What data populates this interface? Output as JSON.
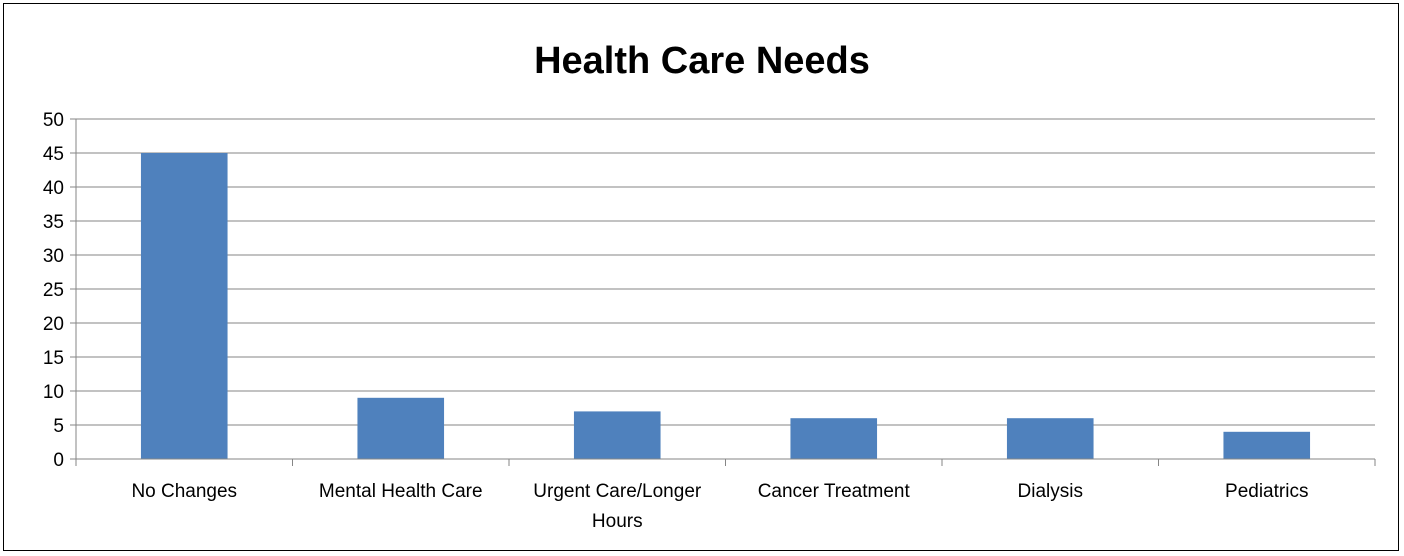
{
  "chart_data": {
    "type": "bar",
    "title": "Health Care Needs",
    "xlabel": "",
    "ylabel": "",
    "categories": [
      "No Changes",
      "Mental Health Care",
      "Urgent Care/Longer Hours",
      "Cancer Treatment",
      "Dialysis",
      "Pediatrics"
    ],
    "category_label_lines": [
      [
        "No Changes"
      ],
      [
        "Mental Health Care"
      ],
      [
        "Urgent Care/Longer",
        "Hours"
      ],
      [
        "Cancer Treatment"
      ],
      [
        "Dialysis"
      ],
      [
        "Pediatrics"
      ]
    ],
    "values": [
      45,
      9,
      7,
      6,
      6,
      4
    ],
    "ylim": [
      0,
      50
    ],
    "yticks": [
      0,
      5,
      10,
      15,
      20,
      25,
      30,
      35,
      40,
      45,
      50
    ],
    "grid": true,
    "legend": "none",
    "bar_color": "#4f81bd",
    "gridline_color": "#868686"
  }
}
